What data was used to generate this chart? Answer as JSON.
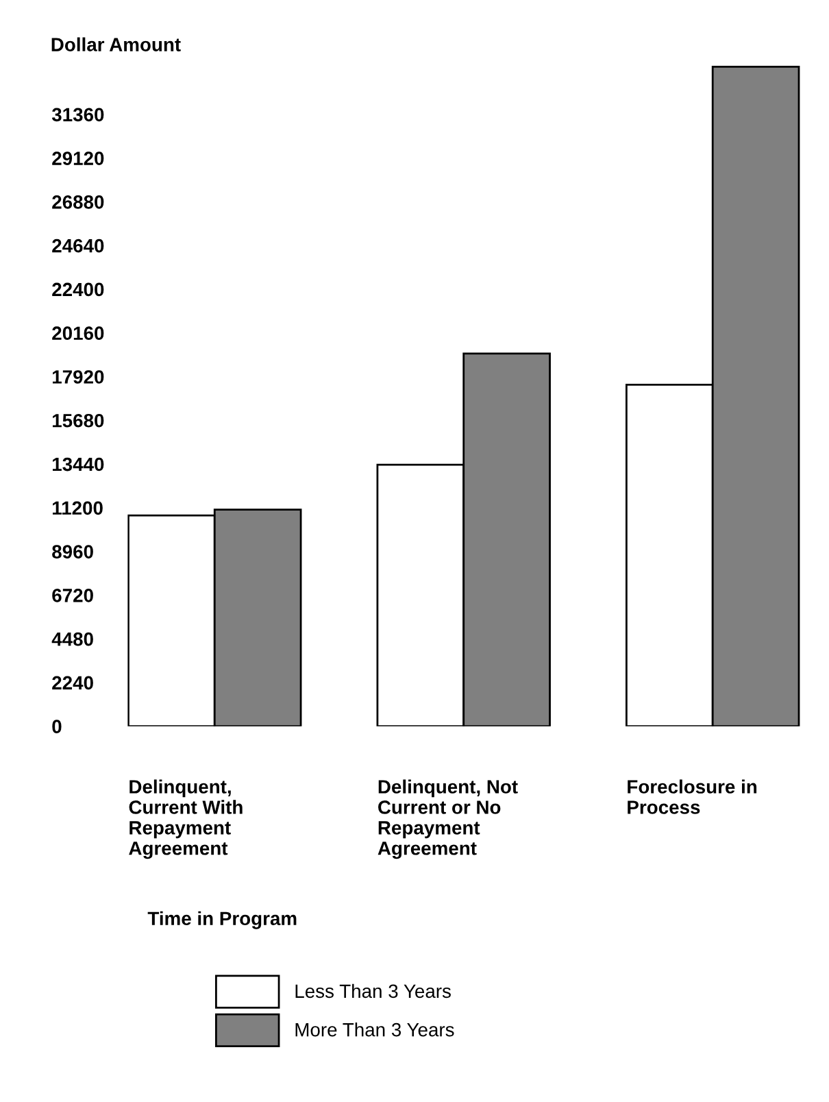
{
  "chart_data": {
    "type": "bar",
    "ylabel": "Dollar Amount",
    "xlabel": "Time in Program",
    "categories": [
      "Delinquent,\nCurrent With\nRepayment\nAgreement",
      "Delinquent, Not\nCurrent or No\nRepayment\nAgreement",
      "Foreclosure in\nProcess"
    ],
    "series": [
      {
        "name": "Less Than 3 Years",
        "color": "#ffffff",
        "values": [
          10800,
          13400,
          17500
        ]
      },
      {
        "name": "More Than 3 Years",
        "color": "#808080",
        "values": [
          11100,
          19100,
          33800
        ]
      }
    ],
    "ylim": [
      0,
      34000
    ],
    "yticks": [
      0,
      2240,
      4480,
      6720,
      8960,
      11200,
      13440,
      15680,
      17920,
      20160,
      22400,
      24640,
      26880,
      29120,
      31360
    ],
    "grid": false,
    "legend": "bottom"
  }
}
